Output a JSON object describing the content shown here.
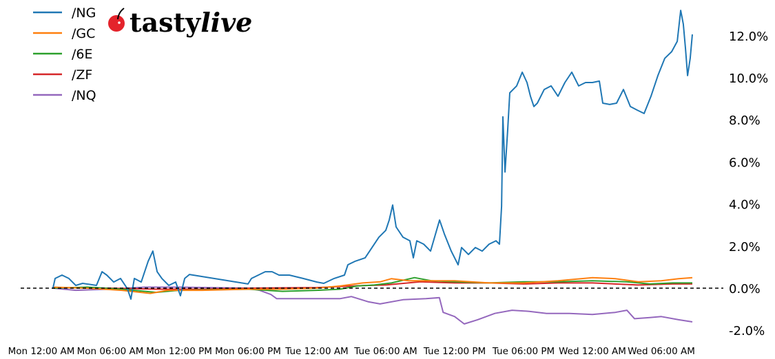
{
  "logo": {
    "text_main": "tasty",
    "text_italic": "live"
  },
  "chart_data": {
    "type": "line",
    "title": "",
    "xlabel": "",
    "ylabel": "",
    "y_unit": "%",
    "ylim": [
      -2.2,
      13.4
    ],
    "y_ticks": [
      "-2.0%",
      "0.0%",
      "2.0%",
      "4.0%",
      "6.0%",
      "8.0%",
      "10.0%",
      "12.0%"
    ],
    "y_tick_values": [
      -2,
      0,
      2,
      4,
      6,
      8,
      10,
      12
    ],
    "x_ticks": [
      "Mon 12:00 AM",
      "Mon 06:00 AM",
      "Mon 12:00 PM",
      "Mon 06:00 PM",
      "Tue 12:00 AM",
      "Tue 06:00 AM",
      "Tue 12:00 PM",
      "Tue 06:00 PM",
      "Wed 12:00 AM",
      "Wed 06:00 AM"
    ],
    "x_tick_times": [
      "Mon 00:00",
      "Mon 06:00",
      "Mon 12:00",
      "Mon 18:00",
      "Tue 00:00",
      "Tue 06:00",
      "Tue 12:00",
      "Tue 18:00",
      "Wed 00:00",
      "Wed 06:00"
    ],
    "reference_line": {
      "value": 0,
      "style": "dashed",
      "color": "#000000"
    },
    "grid": false,
    "legend_position": "top-left",
    "y_axis_side": "right",
    "series": [
      {
        "name": "/NG",
        "color": "#1f77b4",
        "points": [
          [
            "Mon 01:00",
            -0.03
          ],
          [
            "Mon 01:12",
            0.46
          ],
          [
            "Mon 01:48",
            0.62
          ],
          [
            "Mon 02:24",
            0.46
          ],
          [
            "Mon 03:00",
            0.13
          ],
          [
            "Mon 03:36",
            0.23
          ],
          [
            "Mon 04:48",
            0.13
          ],
          [
            "Mon 05:17",
            0.78
          ],
          [
            "Mon 05:42",
            0.62
          ],
          [
            "Mon 06:18",
            0.29
          ],
          [
            "Mon 06:54",
            0.46
          ],
          [
            "Mon 07:30",
            -0.03
          ],
          [
            "Mon 07:48",
            -0.52
          ],
          [
            "Mon 08:06",
            0.46
          ],
          [
            "Mon 08:42",
            0.29
          ],
          [
            "Mon 09:00",
            0.78
          ],
          [
            "Mon 09:18",
            1.27
          ],
          [
            "Mon 09:43",
            1.76
          ],
          [
            "Mon 10:05",
            0.78
          ],
          [
            "Mon 10:30",
            0.46
          ],
          [
            "Mon 11:06",
            0.13
          ],
          [
            "Mon 11:42",
            0.29
          ],
          [
            "Mon 12:07",
            -0.36
          ],
          [
            "Mon 12:29",
            0.46
          ],
          [
            "Mon 12:54",
            0.65
          ],
          [
            "Mon 18:00",
            0.2
          ],
          [
            "Mon 18:18",
            0.46
          ],
          [
            "Mon 18:54",
            0.62
          ],
          [
            "Mon 19:30",
            0.78
          ],
          [
            "Mon 20:06",
            0.78
          ],
          [
            "Mon 20:42",
            0.62
          ],
          [
            "Mon 21:36",
            0.62
          ],
          [
            "Mon 22:48",
            0.46
          ],
          [
            "Tue 00:00",
            0.29
          ],
          [
            "Tue 00:36",
            0.23
          ],
          [
            "Tue 01:30",
            0.46
          ],
          [
            "Tue 02:24",
            0.62
          ],
          [
            "Tue 02:42",
            1.11
          ],
          [
            "Tue 03:18",
            1.27
          ],
          [
            "Tue 04:12",
            1.44
          ],
          [
            "Tue 04:48",
            1.93
          ],
          [
            "Tue 05:24",
            2.42
          ],
          [
            "Tue 06:00",
            2.75
          ],
          [
            "Tue 06:18",
            3.24
          ],
          [
            "Tue 06:36",
            3.95
          ],
          [
            "Tue 06:54",
            2.91
          ],
          [
            "Tue 07:30",
            2.42
          ],
          [
            "Tue 08:06",
            2.25
          ],
          [
            "Tue 08:24",
            1.44
          ],
          [
            "Tue 08:42",
            2.25
          ],
          [
            "Tue 09:18",
            2.09
          ],
          [
            "Tue 09:54",
            1.76
          ],
          [
            "Tue 10:41",
            3.24
          ],
          [
            "Tue 11:06",
            2.58
          ],
          [
            "Tue 11:42",
            1.76
          ],
          [
            "Tue 12:18",
            1.11
          ],
          [
            "Tue 12:36",
            1.93
          ],
          [
            "Tue 13:12",
            1.6
          ],
          [
            "Tue 13:48",
            1.93
          ],
          [
            "Tue 14:24",
            1.76
          ],
          [
            "Tue 15:00",
            2.09
          ],
          [
            "Tue 15:36",
            2.25
          ],
          [
            "Tue 15:54",
            2.09
          ],
          [
            "Tue 16:05",
            3.89
          ],
          [
            "Tue 16:12",
            8.14
          ],
          [
            "Tue 16:23",
            5.52
          ],
          [
            "Tue 16:37",
            7.48
          ],
          [
            "Tue 16:48",
            9.28
          ],
          [
            "Tue 17:24",
            9.61
          ],
          [
            "Tue 17:53",
            10.26
          ],
          [
            "Tue 18:18",
            9.77
          ],
          [
            "Tue 18:36",
            9.12
          ],
          [
            "Tue 18:54",
            8.63
          ],
          [
            "Tue 19:12",
            8.79
          ],
          [
            "Tue 19:48",
            9.44
          ],
          [
            "Tue 20:24",
            9.61
          ],
          [
            "Tue 21:00",
            9.12
          ],
          [
            "Tue 21:36",
            9.77
          ],
          [
            "Tue 22:12",
            10.26
          ],
          [
            "Tue 22:48",
            9.61
          ],
          [
            "Tue 23:24",
            9.77
          ],
          [
            "Wed 00:00",
            9.77
          ],
          [
            "Wed 00:36",
            9.84
          ],
          [
            "Wed 00:54",
            8.79
          ],
          [
            "Wed 01:30",
            8.73
          ],
          [
            "Wed 02:06",
            8.79
          ],
          [
            "Wed 02:42",
            9.44
          ],
          [
            "Wed 03:18",
            8.63
          ],
          [
            "Wed 03:54",
            8.46
          ],
          [
            "Wed 04:30",
            8.3
          ],
          [
            "Wed 05:06",
            9.12
          ],
          [
            "Wed 05:42",
            10.1
          ],
          [
            "Wed 06:18",
            10.92
          ],
          [
            "Wed 06:54",
            11.24
          ],
          [
            "Wed 07:23",
            11.73
          ],
          [
            "Wed 07:41",
            13.2
          ],
          [
            "Wed 07:55",
            12.55
          ],
          [
            "Wed 08:06",
            11.41
          ],
          [
            "Wed 08:17",
            10.1
          ],
          [
            "Wed 08:31",
            10.92
          ],
          [
            "Wed 08:42",
            12.06
          ]
        ]
      },
      {
        "name": "/GC",
        "color": "#ff7f0e",
        "points": [
          [
            "Mon 01:00",
            0.05
          ],
          [
            "Mon 04:00",
            0.0
          ],
          [
            "Mon 07:00",
            -0.1
          ],
          [
            "Mon 09:30",
            -0.25
          ],
          [
            "Mon 11:00",
            -0.1
          ],
          [
            "Mon 14:00",
            -0.1
          ],
          [
            "Mon 18:00",
            -0.05
          ],
          [
            "Mon 21:00",
            -0.05
          ],
          [
            "Tue 00:00",
            0.0
          ],
          [
            "Tue 02:00",
            0.1
          ],
          [
            "Tue 04:00",
            0.25
          ],
          [
            "Tue 05:30",
            0.3
          ],
          [
            "Tue 06:30",
            0.45
          ],
          [
            "Tue 08:00",
            0.35
          ],
          [
            "Tue 10:00",
            0.35
          ],
          [
            "Tue 12:00",
            0.35
          ],
          [
            "Tue 15:00",
            0.25
          ],
          [
            "Tue 18:00",
            0.25
          ],
          [
            "Tue 21:00",
            0.35
          ],
          [
            "Wed 00:00",
            0.5
          ],
          [
            "Wed 02:00",
            0.45
          ],
          [
            "Wed 04:00",
            0.3
          ],
          [
            "Wed 06:00",
            0.35
          ],
          [
            "Wed 07:30",
            0.45
          ],
          [
            "Wed 08:42",
            0.5
          ]
        ]
      },
      {
        "name": "/6E",
        "color": "#2ca02c",
        "points": [
          [
            "Mon 01:00",
            0.0
          ],
          [
            "Mon 04:00",
            0.05
          ],
          [
            "Mon 07:00",
            -0.05
          ],
          [
            "Mon 10:00",
            -0.2
          ],
          [
            "Mon 12:00",
            -0.1
          ],
          [
            "Mon 18:00",
            -0.05
          ],
          [
            "Mon 21:00",
            -0.15
          ],
          [
            "Tue 00:00",
            -0.1
          ],
          [
            "Tue 02:00",
            -0.05
          ],
          [
            "Tue 03:30",
            0.1
          ],
          [
            "Tue 05:00",
            0.15
          ],
          [
            "Tue 06:30",
            0.25
          ],
          [
            "Tue 08:30",
            0.5
          ],
          [
            "Tue 10:00",
            0.35
          ],
          [
            "Tue 12:00",
            0.3
          ],
          [
            "Tue 15:00",
            0.25
          ],
          [
            "Tue 18:00",
            0.3
          ],
          [
            "Tue 21:00",
            0.3
          ],
          [
            "Wed 00:00",
            0.35
          ],
          [
            "Wed 03:00",
            0.3
          ],
          [
            "Wed 05:00",
            0.2
          ],
          [
            "Wed 07:00",
            0.25
          ],
          [
            "Wed 08:42",
            0.25
          ]
        ]
      },
      {
        "name": "/ZF",
        "color": "#d62728",
        "points": [
          [
            "Mon 01:00",
            0.02
          ],
          [
            "Mon 06:00",
            0.0
          ],
          [
            "Mon 10:00",
            -0.05
          ],
          [
            "Mon 14:00",
            -0.05
          ],
          [
            "Mon 18:00",
            0.0
          ],
          [
            "Mon 22:00",
            0.02
          ],
          [
            "Tue 00:00",
            0.03
          ],
          [
            "Tue 02:00",
            0.08
          ],
          [
            "Tue 04:00",
            0.12
          ],
          [
            "Tue 06:00",
            0.15
          ],
          [
            "Tue 09:00",
            0.3
          ],
          [
            "Tue 12:00",
            0.25
          ],
          [
            "Tue 15:00",
            0.25
          ],
          [
            "Tue 18:00",
            0.2
          ],
          [
            "Tue 21:00",
            0.25
          ],
          [
            "Wed 00:00",
            0.25
          ],
          [
            "Wed 04:00",
            0.15
          ],
          [
            "Wed 07:00",
            0.2
          ],
          [
            "Wed 08:42",
            0.2
          ]
        ]
      },
      {
        "name": "/NQ",
        "color": "#9467bd",
        "points": [
          [
            "Mon 01:00",
            0.0
          ],
          [
            "Mon 03:00",
            -0.1
          ],
          [
            "Mon 06:00",
            -0.05
          ],
          [
            "Mon 09:00",
            0.05
          ],
          [
            "Mon 12:00",
            0.05
          ],
          [
            "Mon 18:00",
            0.0
          ],
          [
            "Mon 19:00",
            -0.1
          ],
          [
            "Mon 20:00",
            -0.3
          ],
          [
            "Mon 20:30",
            -0.5
          ],
          [
            "Mon 23:00",
            -0.5
          ],
          [
            "Tue 02:00",
            -0.5
          ],
          [
            "Tue 03:00",
            -0.4
          ],
          [
            "Tue 04:30",
            -0.65
          ],
          [
            "Tue 05:30",
            -0.75
          ],
          [
            "Tue 07:30",
            -0.55
          ],
          [
            "Tue 09:30",
            -0.5
          ],
          [
            "Tue 10:40",
            -0.45
          ],
          [
            "Tue 11:00",
            -1.15
          ],
          [
            "Tue 12:00",
            -1.35
          ],
          [
            "Tue 12:50",
            -1.7
          ],
          [
            "Tue 14:00",
            -1.5
          ],
          [
            "Tue 15:30",
            -1.2
          ],
          [
            "Tue 17:00",
            -1.05
          ],
          [
            "Tue 18:30",
            -1.1
          ],
          [
            "Tue 20:00",
            -1.2
          ],
          [
            "Tue 22:00",
            -1.2
          ],
          [
            "Wed 00:00",
            -1.25
          ],
          [
            "Wed 02:00",
            -1.15
          ],
          [
            "Wed 03:00",
            -1.05
          ],
          [
            "Wed 03:40",
            -1.45
          ],
          [
            "Wed 05:00",
            -1.4
          ],
          [
            "Wed 06:00",
            -1.35
          ],
          [
            "Wed 07:30",
            -1.5
          ],
          [
            "Wed 08:42",
            -1.6
          ]
        ]
      }
    ]
  }
}
